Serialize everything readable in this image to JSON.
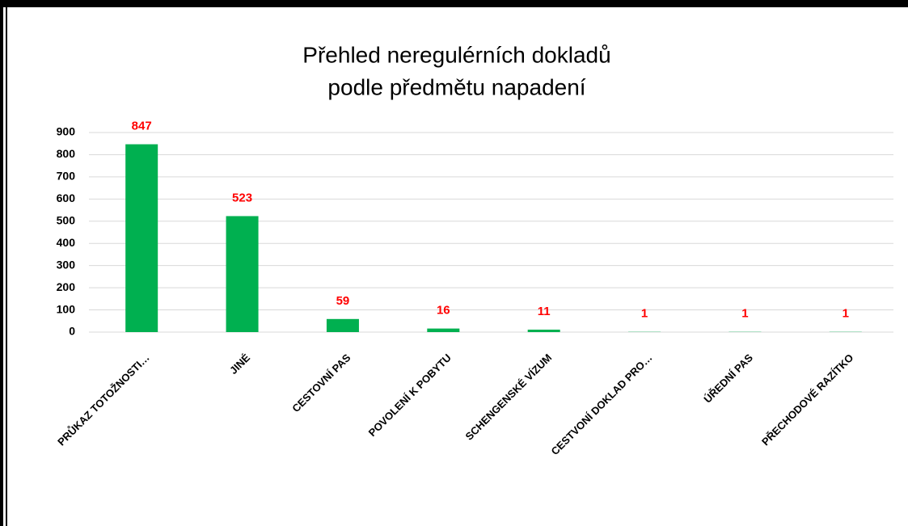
{
  "chart_data": {
    "type": "bar",
    "title": [
      "Přehled neregulérních dokladů",
      "podle předmětu napadení"
    ],
    "categories": [
      "PRŮKAZ TOTOŽNOSTI…",
      "JINÉ",
      "CESTOVNÍ PAS",
      "POVOLENÍ K POBYTU",
      "SCHENGENSKÉ VÍZUM",
      "CESTVONÍ DOKLAD PRO…",
      "ÚŘEDNÍ PAS",
      "PŘECHODOVÉ RAZÍTKO"
    ],
    "values": [
      847,
      523,
      59,
      16,
      11,
      1,
      1,
      1
    ],
    "color": "#00b050",
    "label_color": "#ff0000",
    "ylim": [
      0,
      900
    ],
    "yticks": [
      0,
      100,
      200,
      300,
      400,
      500,
      600,
      700,
      800,
      900
    ],
    "grid": true
  }
}
